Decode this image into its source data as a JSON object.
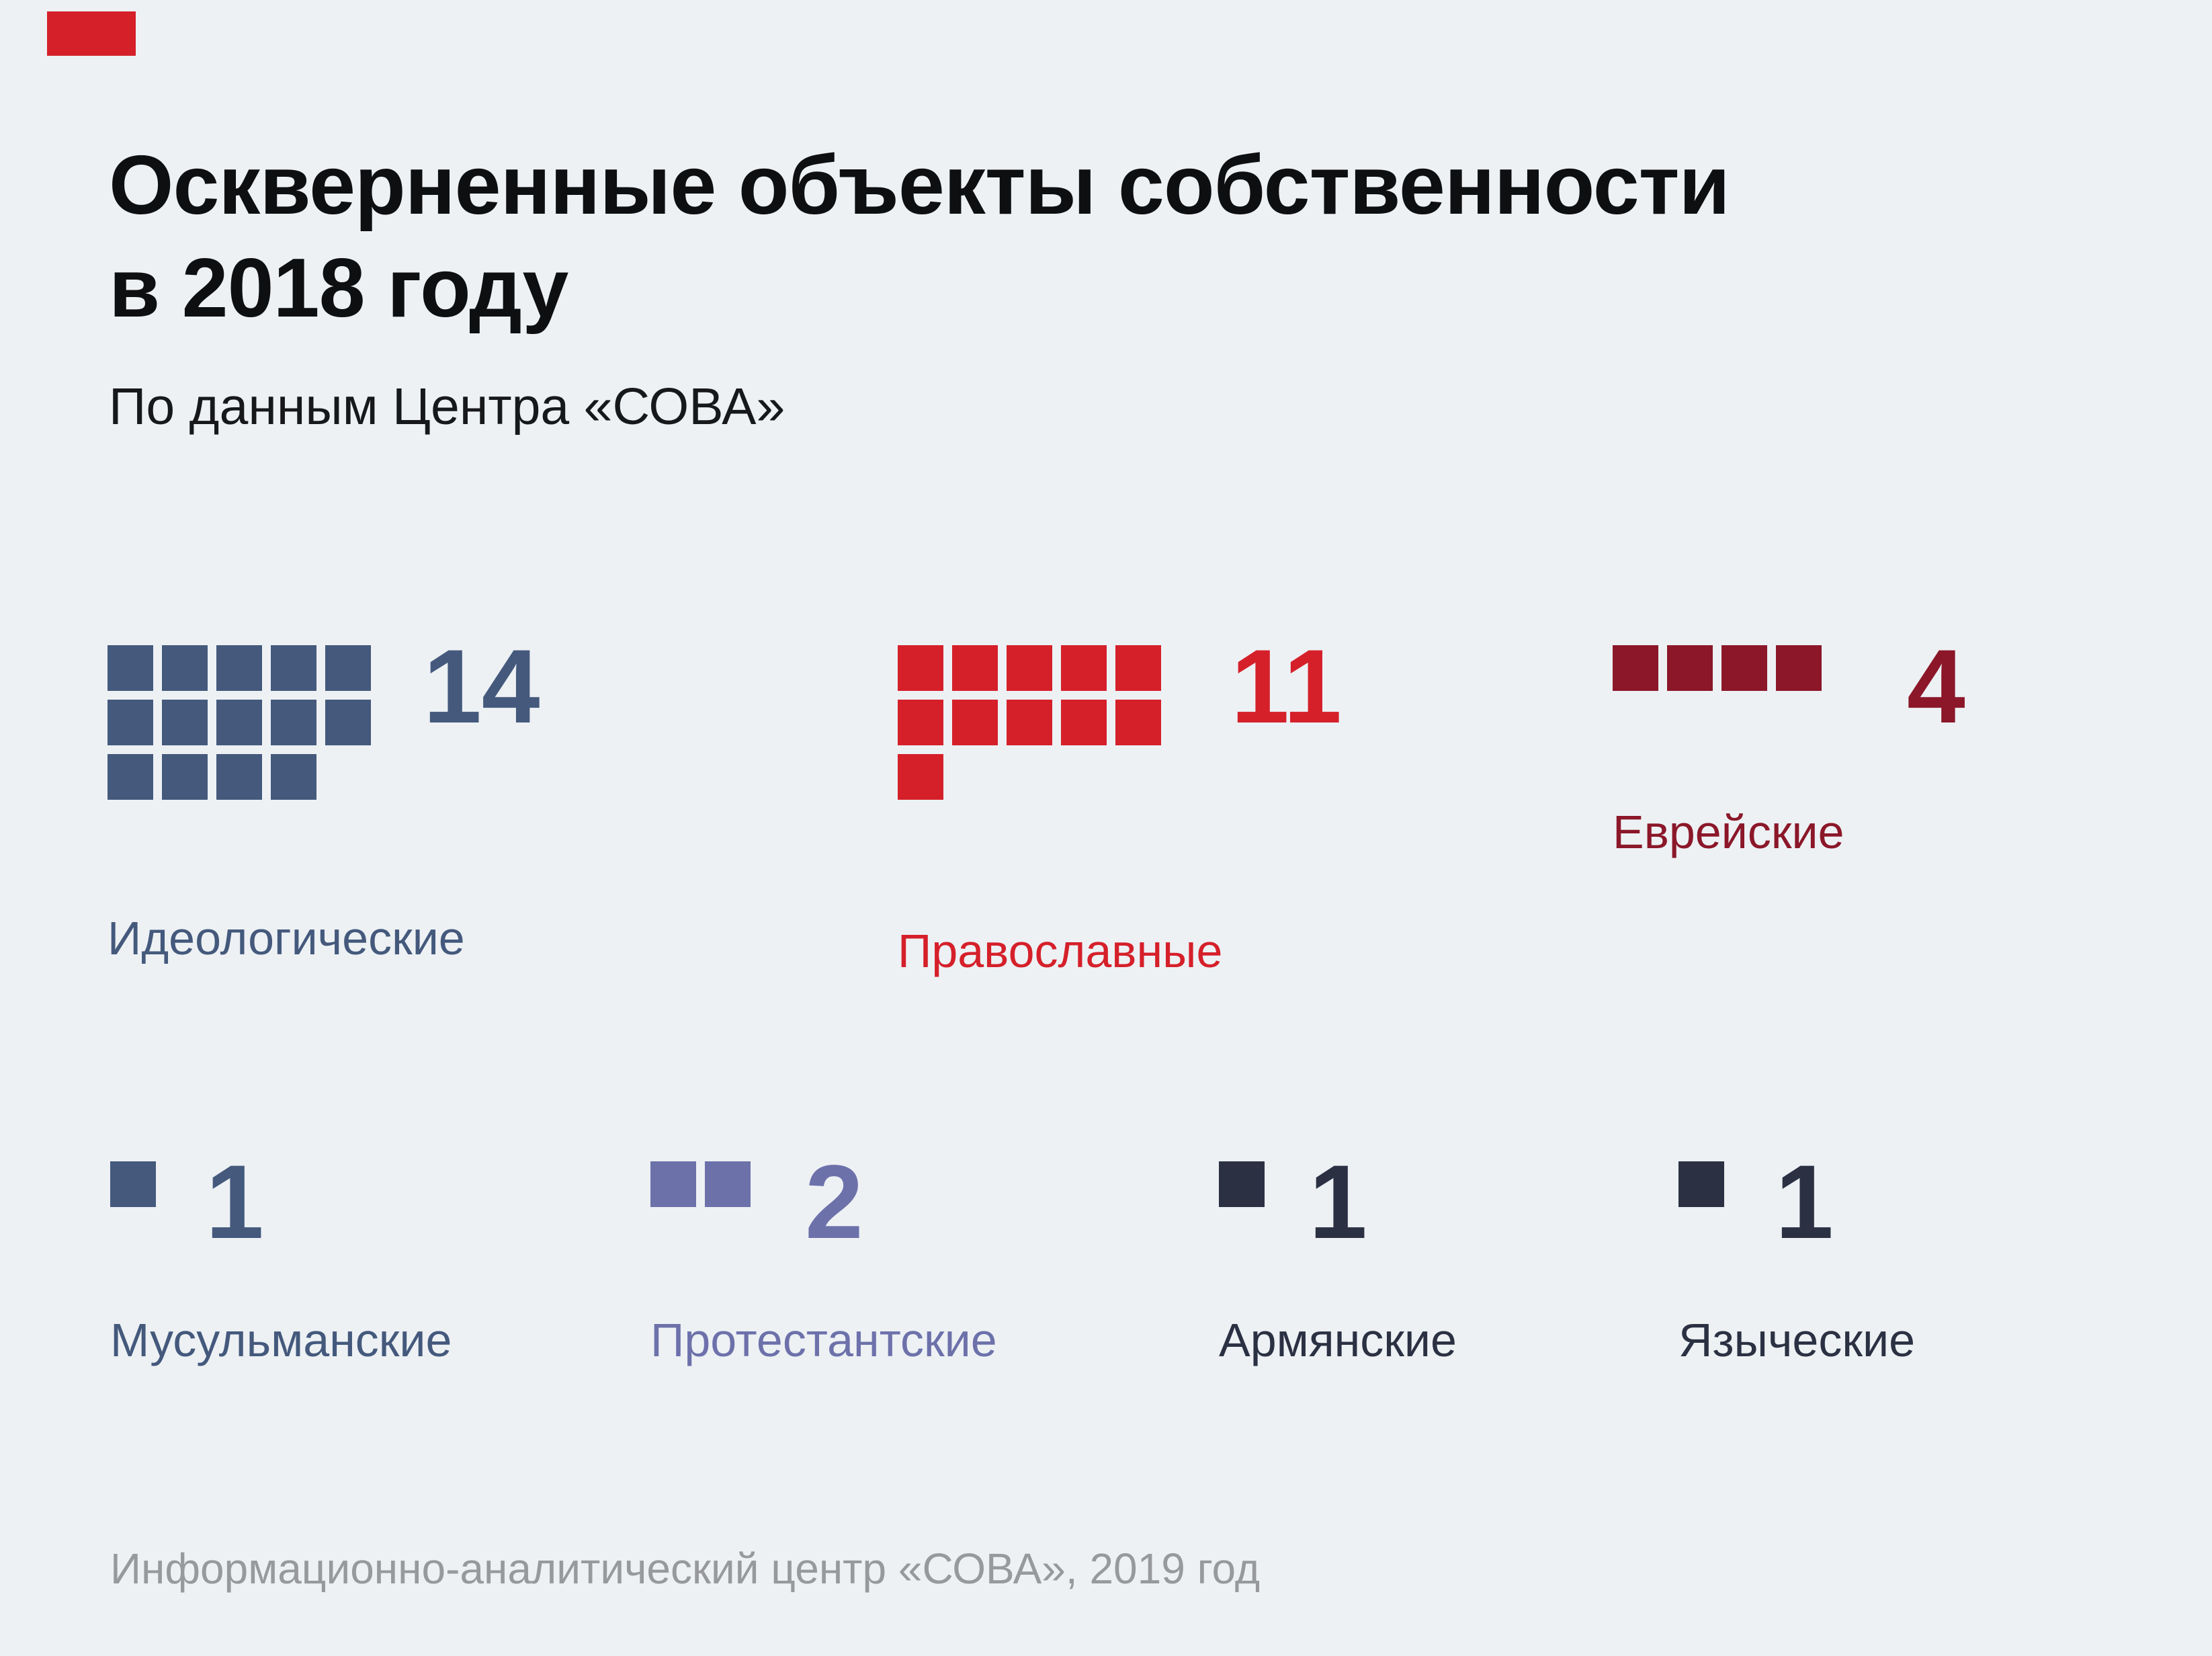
{
  "header": {
    "title_line1": "Оскверненные объекты собственности",
    "title_line2": "в 2018 году",
    "subtitle": "По данным Центра «СОВА»"
  },
  "brand": {
    "color": "#d5202a"
  },
  "groups": [
    {
      "label": "Идеологические",
      "value": 14,
      "color": "#44597c"
    },
    {
      "label": "Православные",
      "value": 11,
      "color": "#d5202a"
    },
    {
      "label": "Еврейские",
      "value": 4,
      "color": "#8b1729"
    },
    {
      "label": "Мусульманские",
      "value": 1,
      "color": "#44597c"
    },
    {
      "label": "Протестантские",
      "value": 2,
      "color": "#6d71aa"
    },
    {
      "label": "Армянские",
      "value": 1,
      "color": "#2b3143"
    },
    {
      "label": "Языческие",
      "value": 1,
      "color": "#2b3143"
    }
  ],
  "footer": {
    "source": "Информационно-аналитический центр «СОВА», 2019 год"
  },
  "chart_data": {
    "type": "bar",
    "style": "waffle-unit-squares, 5 columns per group, each square = 1 object",
    "title": "Оскверненные объекты собственности в 2018 году",
    "subtitle": "По данным Центра «СОВА»",
    "source": "Информационно-аналитический центр «СОВА», 2019 год",
    "categories": [
      "Идеологические",
      "Православные",
      "Еврейские",
      "Мусульманские",
      "Протестантские",
      "Армянские",
      "Языческие"
    ],
    "values": [
      14,
      11,
      4,
      1,
      2,
      1,
      1
    ],
    "series_colors": [
      "#44597c",
      "#d5202a",
      "#8b1729",
      "#44597c",
      "#6d71aa",
      "#2b3143",
      "#2b3143"
    ],
    "background_color": "#edf1f4",
    "legend": "none",
    "grid": "off"
  }
}
